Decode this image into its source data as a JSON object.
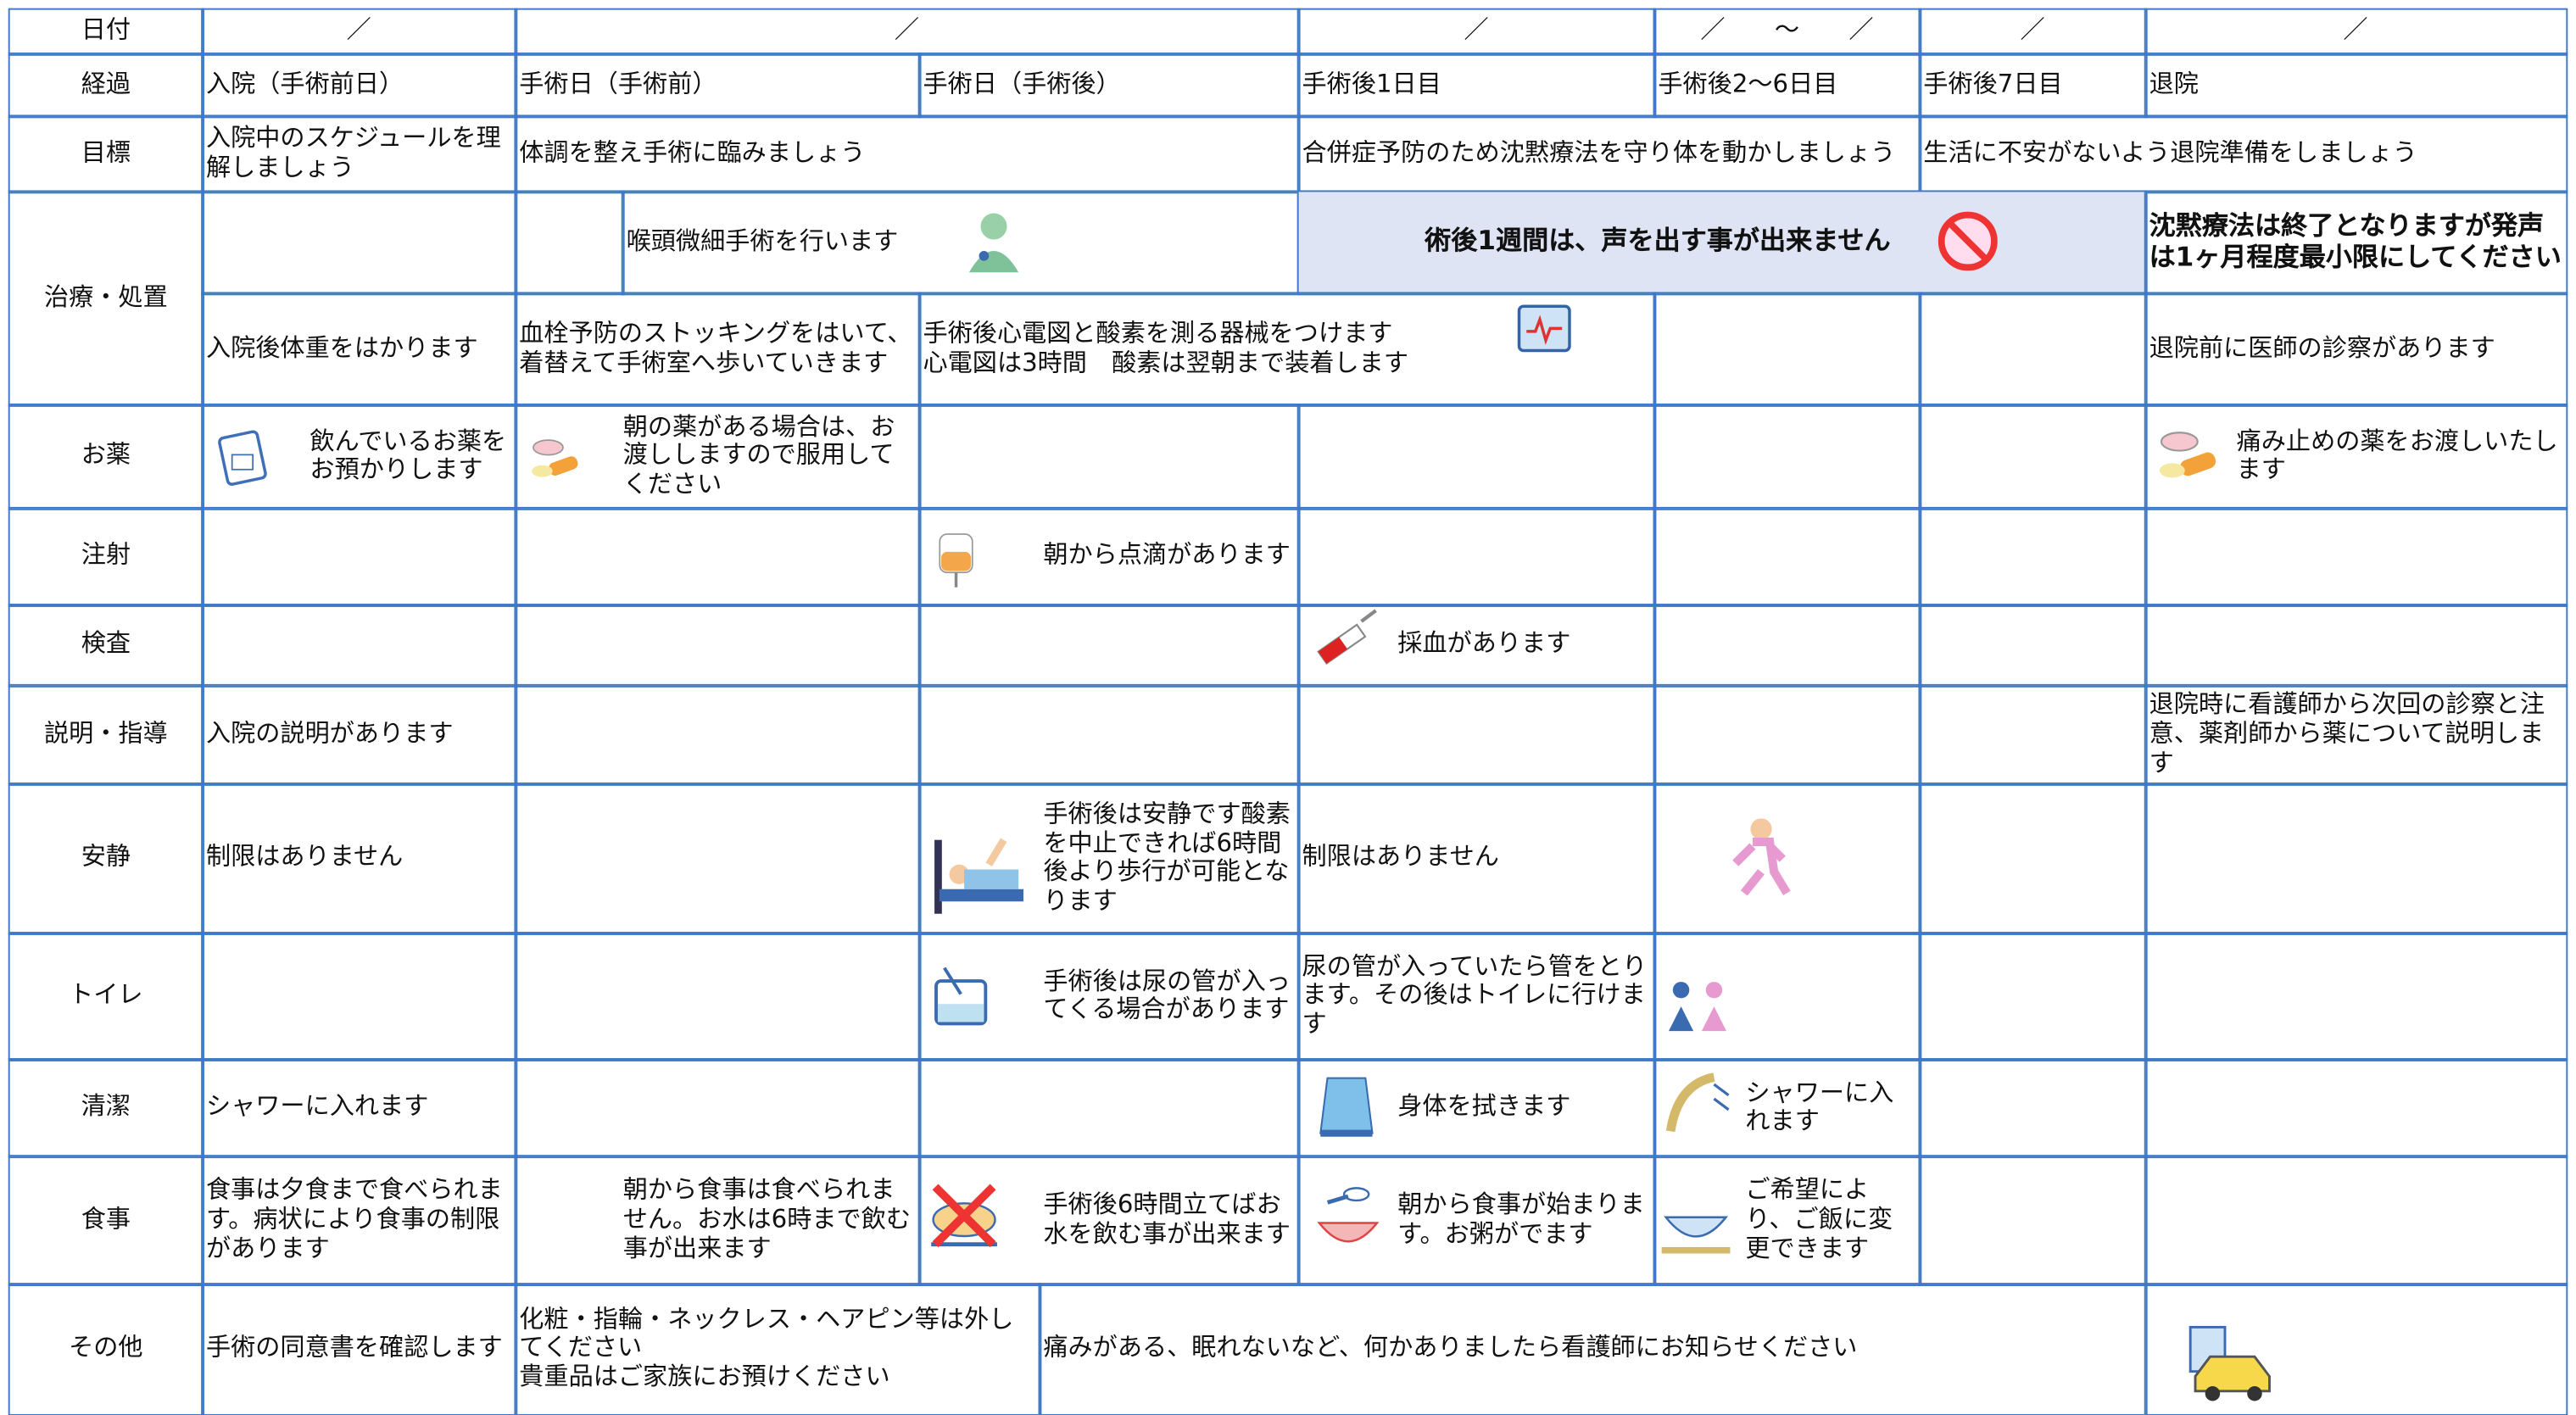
{
  "rows": [
    {
      "label": "日付",
      "cells": [
        "／",
        "／",
        "／",
        "／　　～　　／",
        "／",
        "／"
      ]
    },
    {
      "label": "経過",
      "cells": [
        "入院（手術前日）",
        "手術日（手術前）",
        "手術日（手術後）",
        "手術後1日目",
        "手術後2～6日目",
        "手術後7日目",
        "退院"
      ]
    },
    {
      "label": "目標",
      "cells": [
        "入院中のスケジュールを理解しましょう",
        "体調を整え手術に臨みましょう",
        "合併症予防のため沈黙療法を守り体を動かしましょう",
        "生活に不安がないよう退院準備をしましょう"
      ]
    },
    {
      "label": "治療・処置",
      "cells": [
        "喉頭微細手術を行います",
        "術後1週間は、声を出す事が出来ません",
        "沈黙療法は終了となりますが発声は1ヶ月程度最小限にしてください",
        "入院後体重をはかります",
        "血栓予防のストッキングをはいて、着替えて手術室へ歩いていきます",
        "手術後心電図と酸素を測る器械をつけます\n心電図は3時間　酸素は翌朝まで装着します",
        "退院前に医師の診察があります"
      ]
    },
    {
      "label": "お薬",
      "cells": [
        "飲んでいるお薬をお預かりします",
        "朝の薬がある場合は、お渡ししますので服用してください",
        "痛み止めの薬をお渡しいたします"
      ]
    },
    {
      "label": "注射",
      "cells": [
        "朝から点滴があります"
      ]
    },
    {
      "label": "検査",
      "cells": [
        "採血があります"
      ]
    },
    {
      "label": "説明・指導",
      "cells": [
        "入院の説明があります",
        "退院時に看護師から次回の診察と注意、薬剤師から薬について説明します"
      ]
    },
    {
      "label": "安静",
      "cells": [
        "制限はありません",
        "手術後は安静です酸素を中止できれば6時間後より歩行が可能となります",
        "制限はありません"
      ]
    },
    {
      "label": "トイレ",
      "cells": [
        "手術後は尿の管が入ってくる場合があります",
        "尿の管が入っていたら管をとります。その後はトイレに行けます"
      ]
    },
    {
      "label": "清潔",
      "cells": [
        "シャワーに入れます",
        "身体を拭きます",
        "シャワーに入れます"
      ]
    },
    {
      "label": "食事",
      "cells": [
        "食事は夕食まで食べられます。病状により食事の制限があります",
        "朝から食事は食べられません。お水は6時まで飲む事が出来ます",
        "手術後6時間立てばお水を飲む事が出来ます",
        "朝から食事が始まります。お粥がでます",
        "ご希望により、ご飯に変更できます"
      ]
    },
    {
      "label": "その他",
      "cells": [
        "手術の同意書を確認します",
        "化粧・指輪・ネックレス・ヘアピン等は外してください\n貴重品はご家族にお預けください",
        "痛みがある、眠れないなど、何かありましたら看護師にお知らせください"
      ]
    }
  ]
}
